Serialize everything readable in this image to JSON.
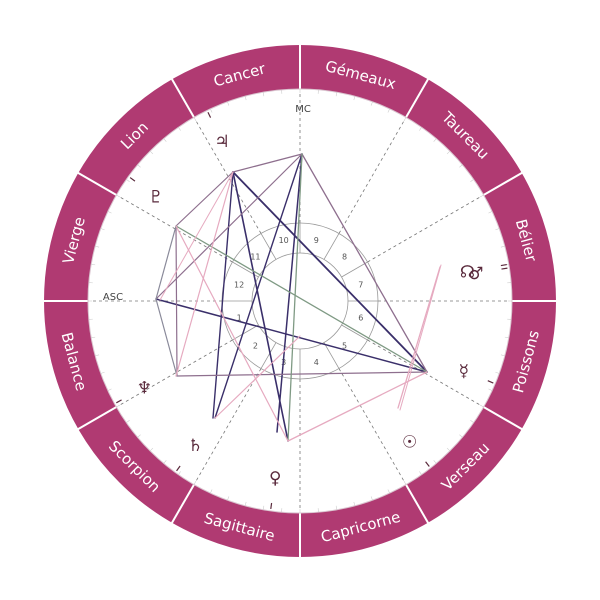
{
  "colors": {
    "ring": "#b03a72",
    "divider": "#ffffff",
    "glyph": "#5a2a3c",
    "aspect_dark": "#3a2f6a",
    "aspect_mauve": "#8e6f8e",
    "aspect_pink": "#e6aac0",
    "aspect_green": "#7f9a84",
    "aspect_gray": "#8a8a9a"
  },
  "signs": [
    {
      "name": "Cancer",
      "center_deg": 105
    },
    {
      "name": "Gémeaux",
      "center_deg": 75
    },
    {
      "name": "Taureau",
      "center_deg": 45
    },
    {
      "name": "Bélier",
      "center_deg": 15
    },
    {
      "name": "Poissons",
      "center_deg": -15
    },
    {
      "name": "Verseau",
      "center_deg": -45
    },
    {
      "name": "Capricorne",
      "center_deg": -75
    },
    {
      "name": "Sagittaire",
      "center_deg": -105
    },
    {
      "name": "Scorpion",
      "center_deg": -135
    },
    {
      "name": "Balance",
      "center_deg": -165
    },
    {
      "name": "Vierge",
      "center_deg": 165
    },
    {
      "name": "Lion",
      "center_deg": 135
    }
  ],
  "axes": {
    "mc": "MC",
    "asc": "ASC"
  },
  "houses": [
    "1",
    "2",
    "3",
    "4",
    "5",
    "6",
    "7",
    "8",
    "9",
    "10",
    "11",
    "12"
  ],
  "planets": [
    {
      "id": "jupiter",
      "glyph": "♃",
      "deg": 116
    },
    {
      "id": "pluto",
      "glyph": "♇",
      "deg": 144
    },
    {
      "id": "neptune",
      "glyph": "♆",
      "deg": -151
    },
    {
      "id": "saturn",
      "glyph": "♄",
      "deg": -126
    },
    {
      "id": "venus",
      "glyph": "♀",
      "deg": -98
    },
    {
      "id": "sun",
      "glyph": "☉",
      "deg": -52
    },
    {
      "id": "mercury",
      "glyph": "☿",
      "deg": -23
    },
    {
      "id": "mars",
      "glyph": "♂",
      "deg": 9
    },
    {
      "id": "node",
      "glyph": "☊",
      "deg": 10
    }
  ]
}
